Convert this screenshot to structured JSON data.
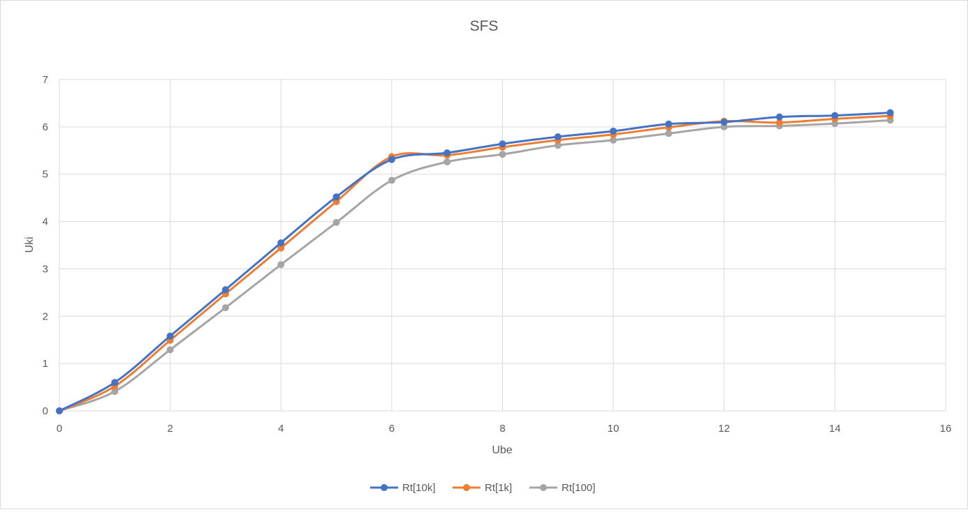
{
  "chart_data": {
    "type": "line",
    "title": "SFS",
    "xlabel": "Ube",
    "ylabel": "Uki",
    "xlim": [
      0,
      16
    ],
    "ylim": [
      0,
      7
    ],
    "x_ticks": [
      0,
      2,
      4,
      6,
      8,
      10,
      12,
      14,
      16
    ],
    "y_ticks": [
      0,
      1,
      2,
      3,
      4,
      5,
      6,
      7
    ],
    "grid": true,
    "smooth": true,
    "legend_position": "bottom",
    "x": [
      0,
      1,
      2,
      3,
      4,
      5,
      6,
      7,
      8,
      9,
      10,
      11,
      12,
      13,
      14,
      15
    ],
    "series": [
      {
        "name": "Rt[10k]",
        "color": "#4472C4",
        "values": [
          0,
          0.6,
          1.58,
          2.56,
          3.55,
          4.52,
          5.31,
          5.45,
          5.64,
          5.79,
          5.91,
          6.06,
          6.1,
          6.21,
          6.24,
          6.3
        ]
      },
      {
        "name": "Rt[1k]",
        "color": "#ED7D31",
        "values": [
          0,
          0.52,
          1.49,
          2.47,
          3.44,
          4.42,
          5.37,
          5.4,
          5.57,
          5.72,
          5.84,
          5.99,
          6.12,
          6.09,
          6.17,
          6.23
        ]
      },
      {
        "name": "Rt[100]",
        "color": "#A5A5A5",
        "values": [
          0,
          0.41,
          1.29,
          2.18,
          3.09,
          3.98,
          4.87,
          5.26,
          5.42,
          5.61,
          5.72,
          5.86,
          6.0,
          6.02,
          6.07,
          6.14
        ]
      }
    ]
  }
}
